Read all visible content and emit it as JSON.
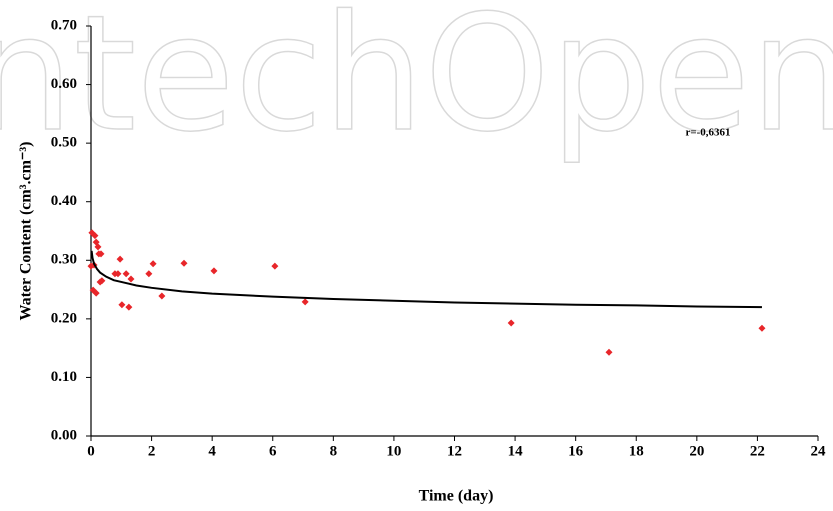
{
  "chart_data": {
    "type": "scatter",
    "watermark": "IntechOpen",
    "x_label": "Time (day)",
    "y_label": "Water Content (cm³.cm⁻³)",
    "annotation": "r=-0,6361",
    "xlim": [
      0,
      24
    ],
    "xticks": [
      0,
      2,
      4,
      6,
      8,
      10,
      12,
      14,
      16,
      18,
      20,
      22,
      24
    ],
    "ylim": [
      0,
      0.7
    ],
    "yticks": [
      {
        "value": 0,
        "label": "0.00"
      },
      {
        "value": 0.1,
        "label": "0.10"
      },
      {
        "value": 0.2,
        "label": "0.20"
      },
      {
        "value": 0.3,
        "label": "0.30"
      },
      {
        "value": 0.4,
        "label": "0.40"
      },
      {
        "value": 0.5,
        "label": "0.50"
      },
      {
        "value": 0.6,
        "label": "0.60"
      },
      {
        "value": 0.7,
        "label": "0.70"
      }
    ],
    "series": [
      {
        "type": "scatter",
        "color": "#e8262a",
        "x": [
          0.03,
          0.13,
          0.17,
          0.1,
          0.0,
          0.23,
          0.26,
          0.33,
          0.07,
          0.17,
          0.3,
          0.36,
          0.79,
          0.89,
          0.96,
          1.02,
          1.16,
          1.25,
          1.32,
          1.91,
          2.05,
          2.34,
          3.07,
          4.06,
          6.07,
          7.07,
          13.87,
          17.1,
          22.15
        ],
        "values": [
          0.347,
          0.342,
          0.331,
          0.292,
          0.29,
          0.323,
          0.311,
          0.311,
          0.249,
          0.244,
          0.263,
          0.265,
          0.277,
          0.277,
          0.302,
          0.224,
          0.277,
          0.22,
          0.268,
          0.277,
          0.294,
          0.239,
          0.295,
          0.282,
          0.29,
          0.229,
          0.193,
          0.143,
          0.184
        ]
      },
      {
        "type": "line",
        "color": "#000000",
        "x": [
          0.02,
          0.05,
          0.1,
          0.2,
          0.3,
          0.5,
          0.75,
          1,
          1.5,
          2,
          3,
          4,
          6,
          8,
          10,
          12,
          14,
          16,
          18,
          20,
          22.15
        ],
        "values": [
          0.316,
          0.304,
          0.294,
          0.285,
          0.279,
          0.272,
          0.266,
          0.263,
          0.257,
          0.253,
          0.247,
          0.243,
          0.238,
          0.234,
          0.231,
          0.228,
          0.226,
          0.224,
          0.223,
          0.221,
          0.22
        ]
      }
    ]
  }
}
